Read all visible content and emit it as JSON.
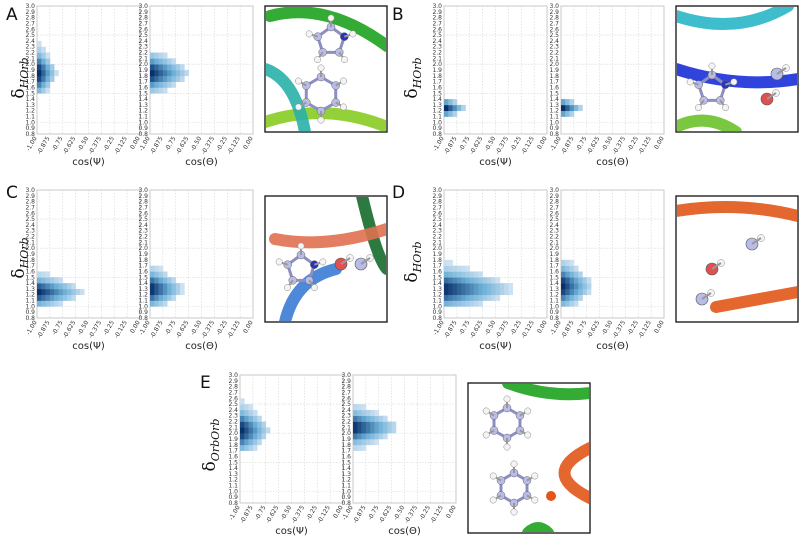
{
  "figure": {
    "x_ticks": [
      "-1.00",
      "-0.875",
      "-0.75",
      "-0.625",
      "-0.50",
      "-0.375",
      "-0.25",
      "-0.125",
      "0.00"
    ],
    "y_ticks": [
      "0.8",
      "0.9",
      "1.0",
      "1.1",
      "1.2",
      "1.3",
      "1.4",
      "1.5",
      "1.6",
      "1.7",
      "1.8",
      "1.9",
      "2.0",
      "2.1",
      "2.2",
      "2.3",
      "2.4",
      "2.5",
      "2.6",
      "2.7",
      "2.8",
      "2.9",
      "3.0"
    ],
    "colormap": {
      "low": "#dfeaf6",
      "mid": "#6aaed6",
      "high": "#08306b"
    }
  },
  "panels": [
    {
      "label": "A",
      "ylabel_main": "δ",
      "ylabel_sub": "HOrb",
      "molecule_icon": "imidazole-phenyl-stacking-render",
      "plots": [
        {
          "xlabel": "cos(Ψ)",
          "hist": {
            "y_center": 1.85,
            "y_sigma": 0.2,
            "y_min": 1.5,
            "y_max": 2.8,
            "x_extent": 0.18
          }
        },
        {
          "xlabel": "cos(Θ)",
          "hist": {
            "y_center": 1.85,
            "y_sigma": 0.17,
            "y_min": 1.55,
            "y_max": 2.2,
            "x_extent": 0.38
          }
        }
      ]
    },
    {
      "label": "B",
      "ylabel_main": "δ",
      "ylabel_sub": "HOrb",
      "molecule_icon": "imidazole-hydroxyl-render",
      "plots": [
        {
          "xlabel": "cos(Ψ)",
          "hist": {
            "y_center": 1.25,
            "y_sigma": 0.08,
            "y_min": 1.1,
            "y_max": 1.4,
            "x_extent": 0.2
          }
        },
        {
          "xlabel": "cos(Θ)",
          "hist": {
            "y_center": 1.25,
            "y_sigma": 0.08,
            "y_min": 1.1,
            "y_max": 1.45,
            "x_extent": 0.2
          }
        }
      ]
    },
    {
      "label": "C",
      "ylabel_main": "δ",
      "ylabel_sub": "HOrb",
      "molecule_icon": "imidazole-carboxyl-render",
      "plots": [
        {
          "xlabel": "cos(Ψ)",
          "hist": {
            "y_center": 1.25,
            "y_sigma": 0.14,
            "y_min": 1.0,
            "y_max": 1.6,
            "x_extent": 0.45
          }
        },
        {
          "xlabel": "cos(Θ)",
          "hist": {
            "y_center": 1.3,
            "y_sigma": 0.17,
            "y_min": 1.0,
            "y_max": 1.75,
            "x_extent": 0.32
          }
        }
      ]
    },
    {
      "label": "D",
      "ylabel_main": "δ",
      "ylabel_sub": "HOrb",
      "molecule_icon": "amide-hydroxyl-render",
      "plots": [
        {
          "xlabel": "cos(Ψ)",
          "hist": {
            "y_center": 1.3,
            "y_sigma": 0.18,
            "y_min": 1.0,
            "y_max": 1.8,
            "x_extent": 0.68
          }
        },
        {
          "xlabel": "cos(Θ)",
          "hist": {
            "y_center": 1.35,
            "y_sigma": 0.2,
            "y_min": 1.0,
            "y_max": 1.85,
            "x_extent": 0.3
          }
        }
      ]
    },
    {
      "label": "E",
      "ylabel_main": "δ",
      "ylabel_sub": "OrbOrb",
      "molecule_icon": "phenyl-phenyl-stacking-render",
      "plots": [
        {
          "xlabel": "cos(Ψ)",
          "hist": {
            "y_center": 2.05,
            "y_sigma": 0.2,
            "y_min": 1.7,
            "y_max": 2.6,
            "x_extent": 0.28
          }
        },
        {
          "xlabel": "cos(Θ)",
          "hist": {
            "y_center": 2.1,
            "y_sigma": 0.16,
            "y_min": 1.75,
            "y_max": 2.5,
            "x_extent": 0.45
          }
        }
      ]
    }
  ],
  "chart_data": [
    {
      "type": "heatmap",
      "panel": "A",
      "subplot": 1,
      "xlabel": "cos(Ψ)",
      "ylabel": "δHOrb",
      "xlim": [
        -1.0,
        0.0
      ],
      "ylim": [
        0.8,
        3.0
      ],
      "grid": true
    },
    {
      "type": "heatmap",
      "panel": "A",
      "subplot": 2,
      "xlabel": "cos(Θ)",
      "ylabel": "δHOrb",
      "xlim": [
        -1.0,
        0.0
      ],
      "ylim": [
        0.8,
        3.0
      ],
      "grid": true
    },
    {
      "type": "heatmap",
      "panel": "B",
      "subplot": 1,
      "xlabel": "cos(Ψ)",
      "ylabel": "δHOrb",
      "xlim": [
        -1.0,
        0.0
      ],
      "ylim": [
        0.8,
        3.0
      ],
      "grid": true
    },
    {
      "type": "heatmap",
      "panel": "B",
      "subplot": 2,
      "xlabel": "cos(Θ)",
      "ylabel": "δHOrb",
      "xlim": [
        -1.0,
        0.0
      ],
      "ylim": [
        0.8,
        3.0
      ],
      "grid": true
    },
    {
      "type": "heatmap",
      "panel": "C",
      "subplot": 1,
      "xlabel": "cos(Ψ)",
      "ylabel": "δHOrb",
      "xlim": [
        -1.0,
        0.0
      ],
      "ylim": [
        0.8,
        3.0
      ],
      "grid": true
    },
    {
      "type": "heatmap",
      "panel": "C",
      "subplot": 2,
      "xlabel": "cos(Θ)",
      "ylabel": "δHOrb",
      "xlim": [
        -1.0,
        0.0
      ],
      "ylim": [
        0.8,
        3.0
      ],
      "grid": true
    },
    {
      "type": "heatmap",
      "panel": "D",
      "subplot": 1,
      "xlabel": "cos(Ψ)",
      "ylabel": "δHOrb",
      "xlim": [
        -1.0,
        0.0
      ],
      "ylim": [
        0.8,
        3.0
      ],
      "grid": true
    },
    {
      "type": "heatmap",
      "panel": "D",
      "subplot": 2,
      "xlabel": "cos(Θ)",
      "ylabel": "δHOrb",
      "xlim": [
        -1.0,
        0.0
      ],
      "ylim": [
        0.8,
        3.0
      ],
      "grid": true
    },
    {
      "type": "heatmap",
      "panel": "E",
      "subplot": 1,
      "xlabel": "cos(Ψ)",
      "ylabel": "δOrbOrb",
      "xlim": [
        -1.0,
        0.0
      ],
      "ylim": [
        0.8,
        3.0
      ],
      "grid": true
    },
    {
      "type": "heatmap",
      "panel": "E",
      "subplot": 2,
      "xlabel": "cos(Θ)",
      "ylabel": "δOrbOrb",
      "xlim": [
        -1.0,
        0.0
      ],
      "ylim": [
        0.8,
        3.0
      ],
      "grid": true
    }
  ]
}
